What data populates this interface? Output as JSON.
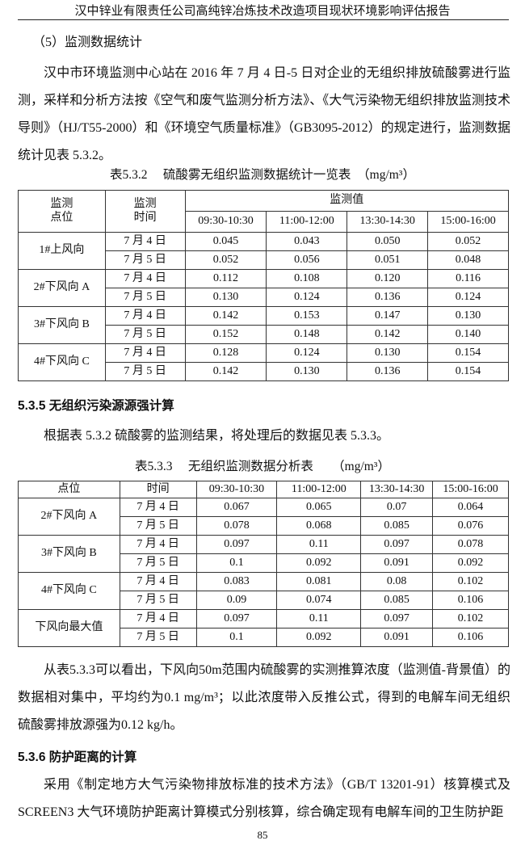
{
  "header": {
    "title": "汉中锌业有限责任公司高纯锌冶炼技术改造项目现状环境影响评估报告"
  },
  "section5": {
    "title": "（5）监测数据统计",
    "para": "汉中市环境监测中心站在 2016 年 7 月 4 日-5 日对企业的无组织排放硫酸雾进行监测，采样和分析方法按《空气和废气监测分析方法》、《大气污染物无组织排放监测技术导则》（HJ/T55-2000）和《环境空气质量标准》（GB3095-2012）的规定进行，监测数据统计见表 5.3.2。"
  },
  "table1": {
    "caption": "表5.3.2　 硫酸雾无组织监测数据统计一览表　（mg/m³）",
    "h_point": "监测\n点位",
    "h_time": "监测\n时间",
    "h_value": "监测值",
    "periods": [
      "09:30-10:30",
      "11:00-12:00",
      "13:30-14:30",
      "15:00-16:00"
    ],
    "groups": [
      {
        "point": "1#上风向",
        "rows": [
          {
            "date": "7 月 4 日",
            "v": [
              "0.045",
              "0.043",
              "0.050",
              "0.052"
            ]
          },
          {
            "date": "7 月 5 日",
            "v": [
              "0.052",
              "0.056",
              "0.051",
              "0.048"
            ]
          }
        ]
      },
      {
        "point": "2#下风向 A",
        "rows": [
          {
            "date": "7 月 4 日",
            "v": [
              "0.112",
              "0.108",
              "0.120",
              "0.116"
            ]
          },
          {
            "date": "7 月 5 日",
            "v": [
              "0.130",
              "0.124",
              "0.136",
              "0.124"
            ]
          }
        ]
      },
      {
        "point": "3#下风向 B",
        "rows": [
          {
            "date": "7 月 4 日",
            "v": [
              "0.142",
              "0.153",
              "0.147",
              "0.130"
            ]
          },
          {
            "date": "7 月 5 日",
            "v": [
              "0.152",
              "0.148",
              "0.142",
              "0.140"
            ]
          }
        ]
      },
      {
        "point": "4#下风向 C",
        "rows": [
          {
            "date": "7 月 4 日",
            "v": [
              "0.128",
              "0.124",
              "0.130",
              "0.154"
            ]
          },
          {
            "date": "7 月 5 日",
            "v": [
              "0.142",
              "0.130",
              "0.136",
              "0.154"
            ]
          }
        ]
      }
    ]
  },
  "section535": {
    "title": "5.3.5  无组织污染源源强计算",
    "para": "根据表 5.3.2 硫酸雾的监测结果，将处理后的数据见表 5.3.3。"
  },
  "table2": {
    "caption": "表5.3.3　 无组织监测数据分析表　　（mg/m³）",
    "h_point": "点位",
    "h_time": "时间",
    "periods": [
      "09:30-10:30",
      "11:00-12:00",
      "13:30-14:30",
      "15:00-16:00"
    ],
    "groups": [
      {
        "point": "2#下风向 A",
        "rows": [
          {
            "date": "7 月 4 日",
            "v": [
              "0.067",
              "0.065",
              "0.07",
              "0.064"
            ]
          },
          {
            "date": "7 月 5 日",
            "v": [
              "0.078",
              "0.068",
              "0.085",
              "0.076"
            ]
          }
        ]
      },
      {
        "point": "3#下风向 B",
        "rows": [
          {
            "date": "7 月 4 日",
            "v": [
              "0.097",
              "0.11",
              "0.097",
              "0.078"
            ]
          },
          {
            "date": "7 月 5 日",
            "v": [
              "0.1",
              "0.092",
              "0.091",
              "0.092"
            ]
          }
        ]
      },
      {
        "point": "4#下风向 C",
        "rows": [
          {
            "date": "7 月 4 日",
            "v": [
              "0.083",
              "0.081",
              "0.08",
              "0.102"
            ]
          },
          {
            "date": "7 月 5 日",
            "v": [
              "0.09",
              "0.074",
              "0.085",
              "0.106"
            ]
          }
        ]
      },
      {
        "point": "下风向最大值",
        "rows": [
          {
            "date": "7 月 4 日",
            "v": [
              "0.097",
              "0.11",
              "0.097",
              "0.102"
            ]
          },
          {
            "date": "7 月 5 日",
            "v": [
              "0.1",
              "0.092",
              "0.091",
              "0.106"
            ]
          }
        ]
      }
    ]
  },
  "conclusion": "从表5.3.3可以看出，下风向50m范围内硫酸雾的实测推算浓度（监测值-背景值）的数据相对集中，平均约为0.1 mg/m³；以此浓度带入反推公式，得到的电解车间无组织硫酸雾排放源强为0.12 kg/h。",
  "section536": {
    "title": "5.3.6  防护距离的计算",
    "para": "采用《制定地方大气污染物排放标准的技术方法》（GB/T 13201-91）核算模式及SCREEN3 大气环境防护距离计算模式分别核算，综合确定现有电解车间的卫生防护距"
  },
  "page_number": "85"
}
